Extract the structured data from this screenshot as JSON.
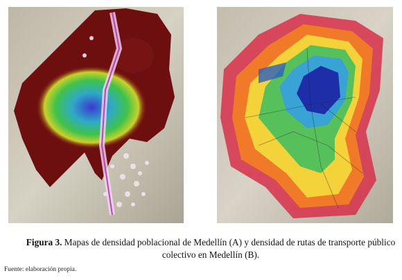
{
  "figure": {
    "label": "Figura 3.",
    "caption": "Mapas de densidad poblacional de Medellín (A) y densidad de rutas de transporte público colectivo en Medellín (B).",
    "source": "Fuente: elaboración propia."
  }
}
